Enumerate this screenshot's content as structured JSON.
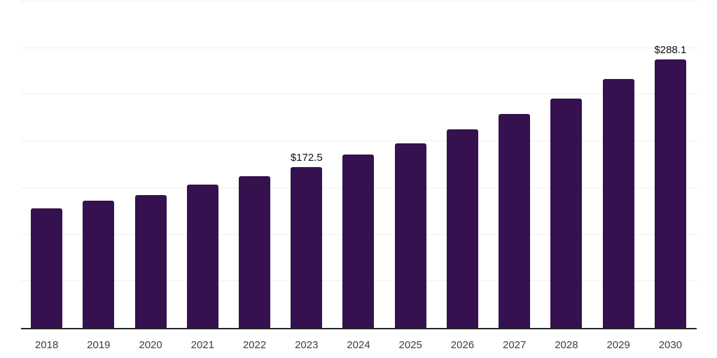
{
  "chart_data": {
    "type": "bar",
    "title": "",
    "xlabel": "",
    "ylabel": "",
    "categories": [
      "2018",
      "2019",
      "2020",
      "2021",
      "2022",
      "2023",
      "2024",
      "2025",
      "2026",
      "2027",
      "2028",
      "2029",
      "2030"
    ],
    "values": [
      127.9,
      136.2,
      142.1,
      153.3,
      163.0,
      172.5,
      185.8,
      197.5,
      213.2,
      229.6,
      246.1,
      267.0,
      288.1
    ],
    "data_labels": [
      {
        "category": "2023",
        "text": "$172.5"
      },
      {
        "category": "2030",
        "text": "$288.1"
      }
    ],
    "ylim": [
      0,
      350
    ],
    "gridline_step": 50,
    "grid": "horizontal",
    "legend": "none",
    "y_axis_ticks_visible": false,
    "colors": {
      "bar": "#35114F",
      "background": "#FFFFFF",
      "gridline": "#EFEFEF",
      "axis_line": "#262626",
      "x_tick_label": "#3D3D3D",
      "data_label": "#111111"
    }
  }
}
